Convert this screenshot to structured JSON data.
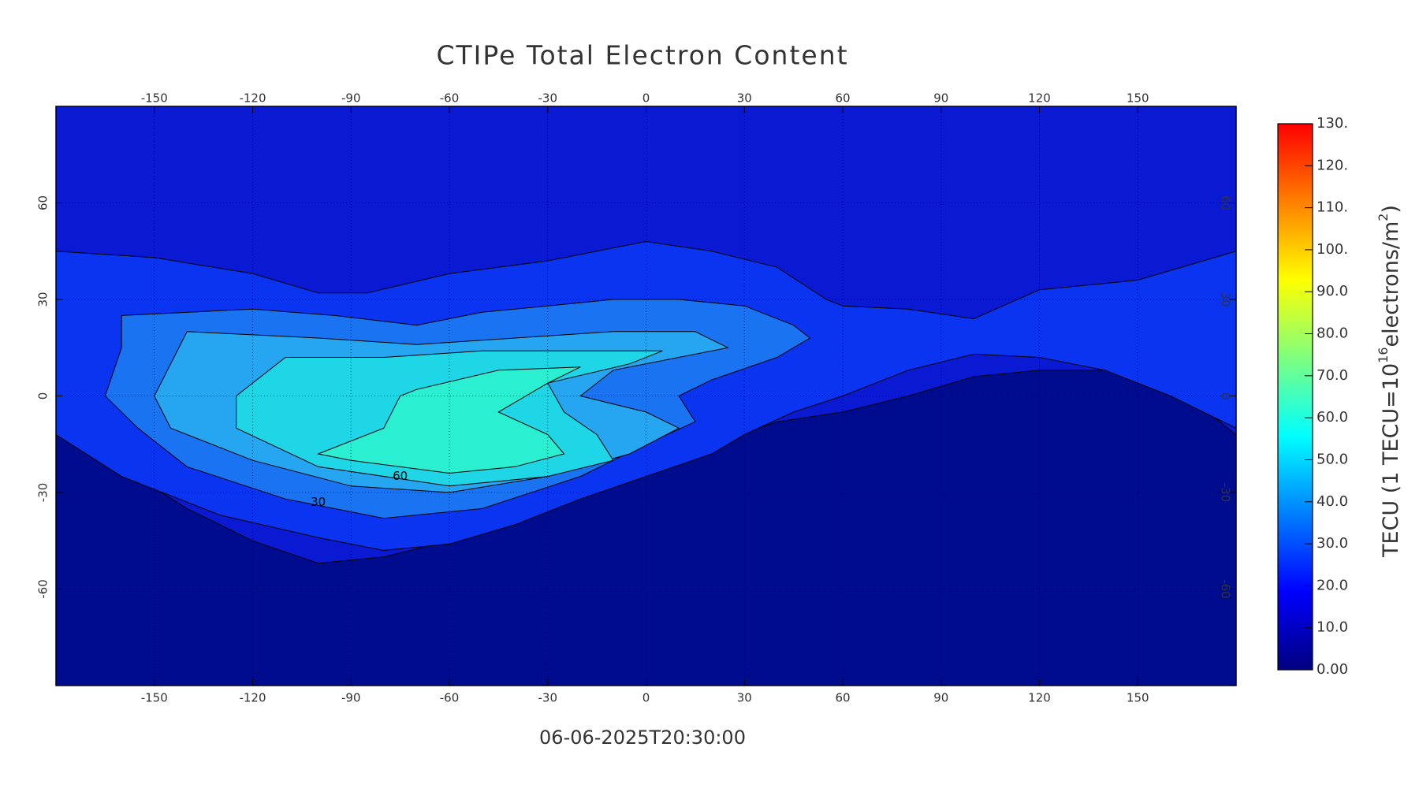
{
  "chart_data": {
    "type": "contour-map",
    "title": "CTIPe Total Electron Content",
    "subtitle": "06-06-2025T20:30:00",
    "xlim": [
      -180,
      180
    ],
    "ylim": [
      -90,
      90
    ],
    "xticks": [
      -150,
      -120,
      -90,
      -60,
      -30,
      0,
      30,
      60,
      90,
      120,
      150
    ],
    "yticks": [
      -60,
      -30,
      0,
      30,
      60
    ],
    "grid": true,
    "levels": [
      {
        "value": 10,
        "color": "#0a1ad2"
      },
      {
        "value": 0,
        "color": "#000c8e"
      },
      {
        "value": 20,
        "color": "#0a34f0"
      },
      {
        "value": 30,
        "color": "#1a74f2"
      },
      {
        "value": 40,
        "color": "#26a6f0"
      },
      {
        "value": 50,
        "color": "#1fd6e6"
      },
      {
        "value": 60,
        "color": "#2aefd0"
      }
    ],
    "contour_labels": [
      "60",
      "30"
    ],
    "colorbar": {
      "label": [
        "TECU (1 TECU=10",
        "16",
        "electrons/m",
        "2",
        ")"
      ],
      "clim": [
        0,
        130
      ],
      "colors": [
        "#00007f",
        "#0000ff",
        "#007fff",
        "#00ffff",
        "#7fff7f",
        "#ffff00",
        "#ff7f00",
        "#ff0000"
      ],
      "ticks": [
        {
          "value": 0,
          "label": "0.00"
        },
        {
          "value": 10,
          "label": "10.0"
        },
        {
          "value": 20,
          "label": "20.0"
        },
        {
          "value": 30,
          "label": "30.0"
        },
        {
          "value": 40,
          "label": "40.0"
        },
        {
          "value": 50,
          "label": "50.0"
        },
        {
          "value": 60,
          "label": "60.0"
        },
        {
          "value": 70,
          "label": "70.0"
        },
        {
          "value": 80,
          "label": "80.0"
        },
        {
          "value": 90,
          "label": "90.0"
        },
        {
          "value": 100,
          "label": "100."
        },
        {
          "value": 110,
          "label": "110."
        },
        {
          "value": 120,
          "label": "120."
        },
        {
          "value": 130,
          "label": "130."
        }
      ]
    }
  }
}
